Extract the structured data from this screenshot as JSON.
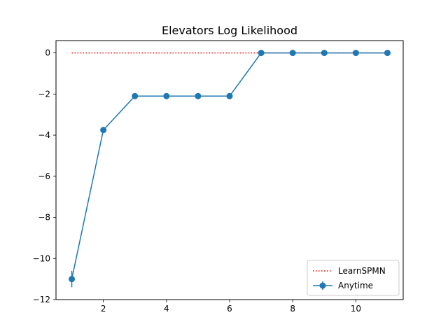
{
  "chart_data": {
    "type": "line",
    "title": "Elevators Log Likelihood",
    "xlabel": "",
    "ylabel": "",
    "xlim": [
      0.5,
      11.5
    ],
    "ylim": [
      -12.0,
      0.6
    ],
    "xticks": [
      2,
      4,
      6,
      8,
      10
    ],
    "xtick_labels": [
      "2",
      "4",
      "6",
      "8",
      "10"
    ],
    "yticks": [
      0,
      -2,
      -4,
      -6,
      -8,
      -10,
      -12
    ],
    "ytick_labels": [
      "0",
      "−2",
      "−4",
      "−6",
      "−8",
      "−10",
      "−12"
    ],
    "grid": false,
    "legend_position": "lower right",
    "series": [
      {
        "name": "LearnSPMN",
        "style": "dotted",
        "color": "#ff0000",
        "x": [
          1,
          11
        ],
        "y": [
          0.0,
          0.0
        ]
      },
      {
        "name": "Anytime",
        "style": "line-marker-errorbar",
        "color": "#1f77b4",
        "x": [
          1,
          2,
          3,
          4,
          5,
          6,
          7,
          8,
          9,
          10,
          11
        ],
        "y": [
          -11.0,
          -3.75,
          -2.1,
          -2.1,
          -2.1,
          -2.1,
          0.0,
          0.0,
          0.0,
          0.0,
          0.0
        ],
        "yerr": [
          0.4,
          0.05,
          0.03,
          0.03,
          0.03,
          0.03,
          0.02,
          0.02,
          0.02,
          0.02,
          0.02
        ]
      }
    ]
  }
}
